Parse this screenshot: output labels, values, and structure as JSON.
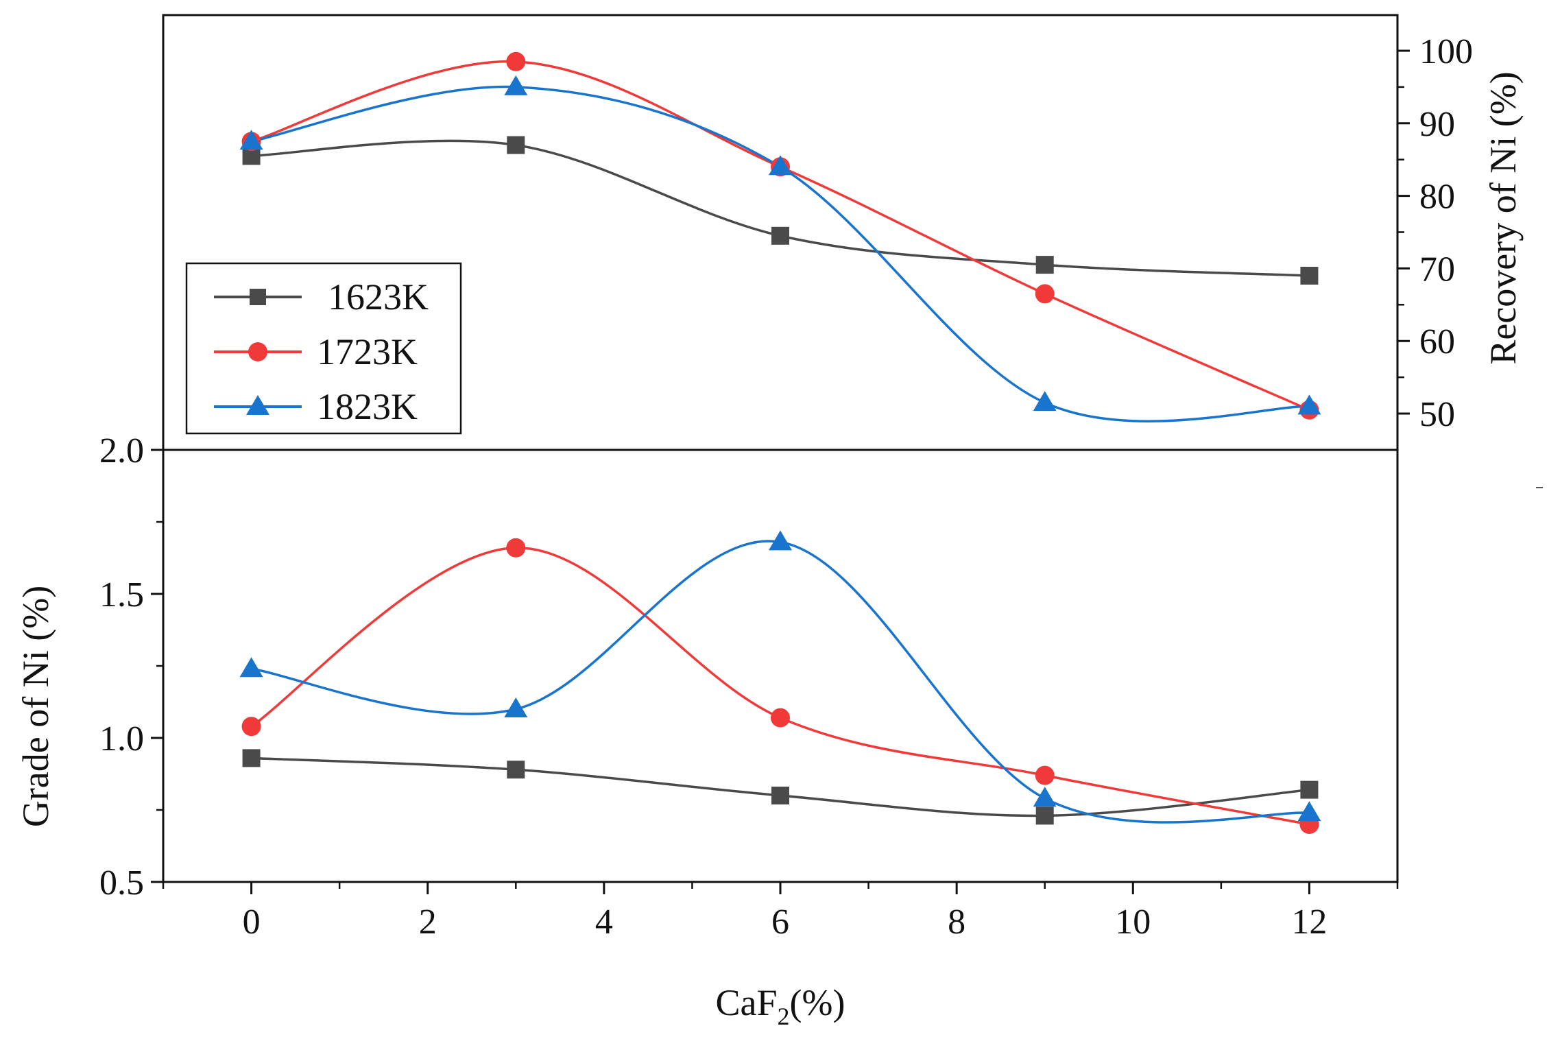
{
  "chart_data": [
    {
      "type": "line",
      "panel": "top",
      "ylabel": "Recovery of Ni (%)",
      "y_axis_side": "right",
      "ylim": [
        45,
        105
      ],
      "yticks": [
        "50",
        "60",
        "70",
        "80",
        "90",
        "100"
      ],
      "x": [
        0,
        3,
        6,
        9,
        12
      ],
      "series": [
        {
          "name": "1623K",
          "marker": "square",
          "color": "#4a4a4a",
          "values": [
            85.5,
            87,
            74.5,
            70.5,
            69
          ]
        },
        {
          "name": "1723K",
          "marker": "circle",
          "color": "#f03a3a",
          "values": [
            87.5,
            98.5,
            84,
            66.5,
            50.5
          ]
        },
        {
          "name": "1823K",
          "marker": "triangle",
          "color": "#1874cd",
          "values": [
            87.5,
            95,
            84,
            51.5,
            51
          ]
        }
      ],
      "legend": {
        "position": "bottom-left",
        "entries": [
          "1623K",
          "1723K",
          "1823K"
        ]
      }
    },
    {
      "type": "line",
      "panel": "bottom",
      "ylabel": "Grade of Ni (%)",
      "y_axis_side": "left",
      "ylim": [
        0.5,
        2.0
      ],
      "yticks": [
        "0.5",
        "1.0",
        "1.5",
        "2.0"
      ],
      "xlabel_main": "CaF",
      "xlabel_sub": "2",
      "xlabel_tail": "(%)",
      "xlim": [
        -1,
        13
      ],
      "xticks": [
        "0",
        "2",
        "4",
        "6",
        "8",
        "10",
        "12"
      ],
      "x": [
        0,
        3,
        6,
        9,
        12
      ],
      "series": [
        {
          "name": "1623K",
          "marker": "square",
          "color": "#4a4a4a",
          "values": [
            0.93,
            0.89,
            0.8,
            0.73,
            0.82
          ]
        },
        {
          "name": "1723K",
          "marker": "circle",
          "color": "#f03a3a",
          "values": [
            1.04,
            1.66,
            1.07,
            0.87,
            0.7
          ]
        },
        {
          "name": "1823K",
          "marker": "triangle",
          "color": "#1874cd",
          "values": [
            1.24,
            1.1,
            1.68,
            0.79,
            0.74
          ]
        }
      ]
    }
  ]
}
